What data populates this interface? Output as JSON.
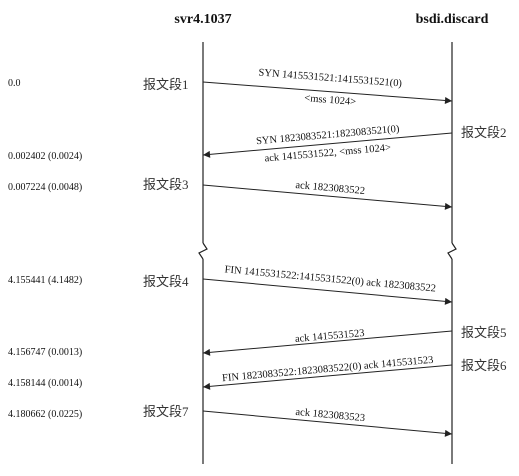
{
  "hosts": {
    "left": "svr4.1037",
    "right": "bsdi.discard"
  },
  "times": [
    "0.0",
    "0.002402 (0.0024)",
    "0.007224 (0.0048)",
    "4.155441 (4.1482)",
    "4.156747 (0.0013)",
    "4.158144 (0.0014)",
    "4.180662 (0.0225)"
  ],
  "segment_labels": [
    "报文段1",
    "报文段2",
    "报文段3",
    "报文段4",
    "报文段5",
    "报文段6",
    "报文段7"
  ],
  "messages": {
    "m1a": "SYN  1415531521:1415531521(0)",
    "m1b": "<mss 1024>",
    "m2a": "SYN  1823083521:1823083521(0)",
    "m2b": "ack 1415531522,  <mss 1024>",
    "m3": "ack 1823083522",
    "m4": "FIN  1415531522:1415531522(0) ack 1823083522",
    "m5": "ack 1415531523",
    "m6": "FIN  1823083522:1823083522(0) ack 1415531523",
    "m7": "ack 1823083523"
  },
  "colors": {
    "line": "#222222",
    "text": "#111111",
    "label": "#333333"
  }
}
